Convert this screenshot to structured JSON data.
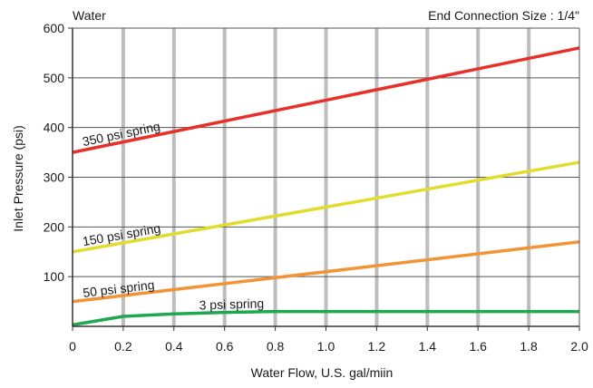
{
  "chart_data": {
    "type": "line",
    "title_left": "Water",
    "title_right": "End Connection Size : 1/4\"",
    "xlabel": "Water Flow, U.S. gal/miin",
    "ylabel": "Inlet Pressure (psi)",
    "xlim": [
      0,
      2.0
    ],
    "ylim": [
      0,
      600
    ],
    "x_ticks": [
      0,
      0.2,
      0.4,
      0.6,
      0.8,
      1.0,
      1.2,
      1.4,
      1.6,
      1.8,
      2.0
    ],
    "x_tick_labels": [
      "0",
      "0.2",
      "0.4",
      "0.6",
      "0.8",
      "1.0",
      "1.2",
      "1.4",
      "1.6",
      "1.8",
      "2.0"
    ],
    "y_ticks": [
      100,
      200,
      300,
      400,
      500,
      600
    ],
    "y_tick_labels": [
      "100",
      "200",
      "300",
      "400",
      "500",
      "600"
    ],
    "grid": true,
    "series": [
      {
        "name": "350 psi spring",
        "color": "#e8302a",
        "x": [
          0,
          2.0
        ],
        "y": [
          350,
          560
        ]
      },
      {
        "name": "150 psi spring",
        "color": "#e2dc2e",
        "x": [
          0,
          2.0
        ],
        "y": [
          150,
          330
        ]
      },
      {
        "name": "50 psi spring",
        "color": "#f29436",
        "x": [
          0,
          2.0
        ],
        "y": [
          50,
          170
        ]
      },
      {
        "name": "3 psi spring",
        "color": "#1fa84f",
        "x": [
          0,
          0.2,
          0.4,
          0.6,
          0.8,
          1.0,
          2.0
        ],
        "y": [
          3,
          20,
          25,
          28,
          30,
          30,
          30
        ]
      }
    ]
  }
}
